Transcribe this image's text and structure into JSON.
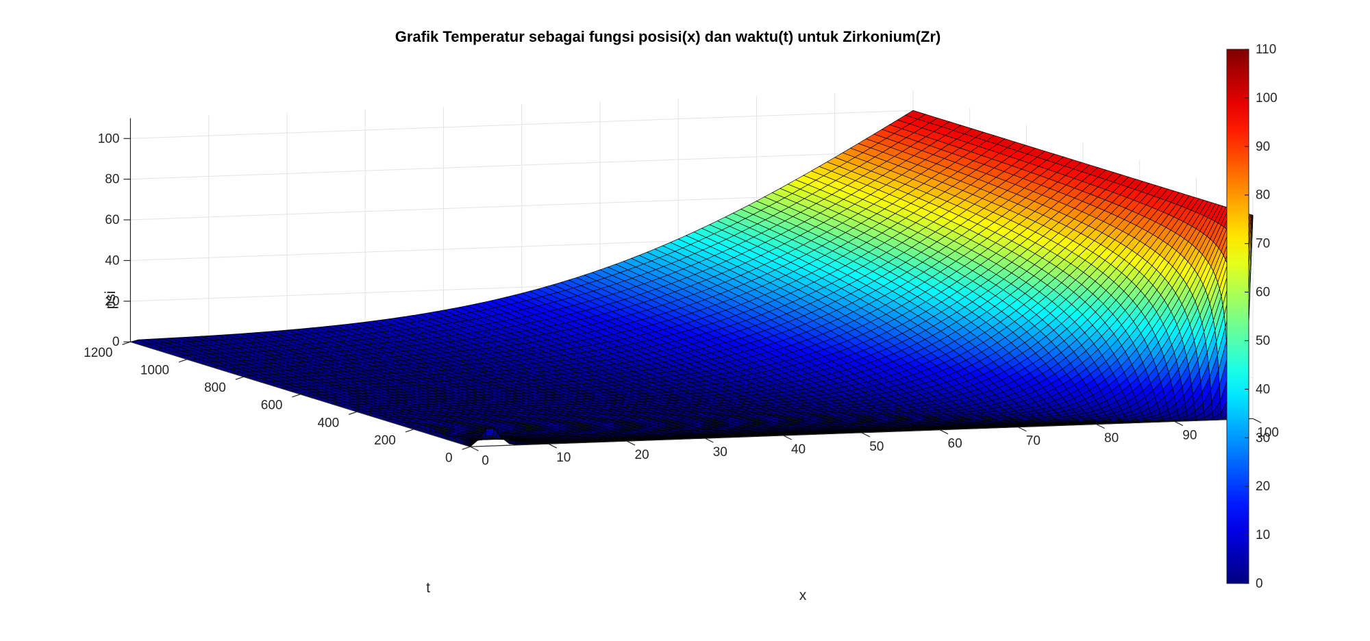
{
  "chart_data": {
    "type": "surface",
    "title": "Grafik Temperatur sebagai fungsi posisi(x) dan waktu(t) untuk Zirkonium(Zr)",
    "xlabel": "x",
    "ylabel": "t",
    "zlabel": "psi",
    "x_range": [
      0,
      100
    ],
    "t_range": [
      0,
      1200
    ],
    "z_range": [
      0,
      110
    ],
    "x_ticks": [
      "0",
      "10",
      "20",
      "30",
      "40",
      "50",
      "60",
      "70",
      "80",
      "90",
      "100"
    ],
    "t_ticks": [
      "0",
      "200",
      "400",
      "600",
      "800",
      "1000",
      "1200"
    ],
    "z_ticks": [
      "0",
      "20",
      "40",
      "60",
      "80",
      "100"
    ],
    "colormap": "jet",
    "colorbar": {
      "range": [
        0,
        110
      ],
      "ticks": [
        "0",
        "10",
        "20",
        "30",
        "40",
        "50",
        "60",
        "70",
        "80",
        "90",
        "100",
        "110"
      ]
    },
    "boundary_conditions": [
      {
        "x": 0,
        "t_range": [
          0,
          1200
        ],
        "psi": 0
      },
      {
        "x": 100,
        "t_range": [
          0,
          1200
        ],
        "psi": 100
      }
    ],
    "initial_condition": {
      "t": 0,
      "psi_near_x0": 10,
      "psi_interior": 0
    },
    "grid": true
  }
}
